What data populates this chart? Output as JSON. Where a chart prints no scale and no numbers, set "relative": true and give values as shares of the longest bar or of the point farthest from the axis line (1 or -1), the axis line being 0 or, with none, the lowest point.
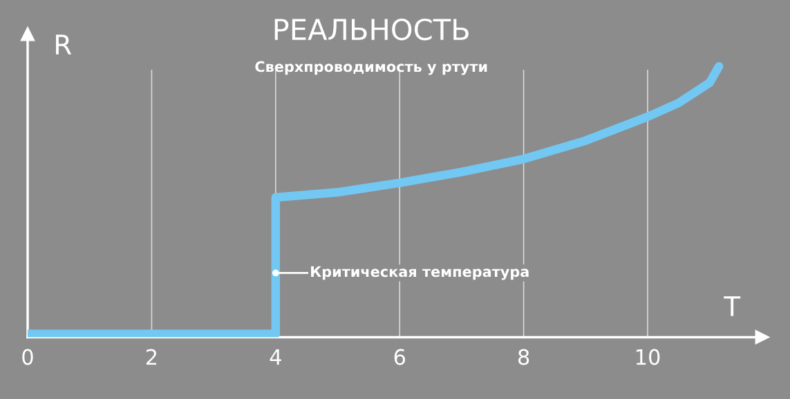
{
  "chart_data": {
    "type": "line",
    "title": "РЕАЛЬНОСТЬ",
    "subtitle": "Сверхпроводимость у ртути",
    "xlabel": "T",
    "ylabel": "R",
    "relative": true,
    "series": [
      {
        "color": "#72c8f2",
        "x": [
          0,
          4,
          4,
          5,
          6,
          7,
          8,
          9,
          10,
          10.5,
          11,
          11.15
        ],
        "values": [
          0.012,
          0.012,
          0.516,
          0.535,
          0.57,
          0.61,
          0.658,
          0.726,
          0.814,
          0.865,
          0.94,
          1
        ]
      }
    ],
    "xlim": [
      0,
      11.85
    ],
    "xticks": [
      0,
      2,
      4,
      6,
      8,
      10
    ],
    "grid": "x",
    "marker": "none",
    "line_style": "solid",
    "annotations": [
      {
        "text": "Критическая температура",
        "x": 4,
        "y": 0.237
      }
    ]
  }
}
